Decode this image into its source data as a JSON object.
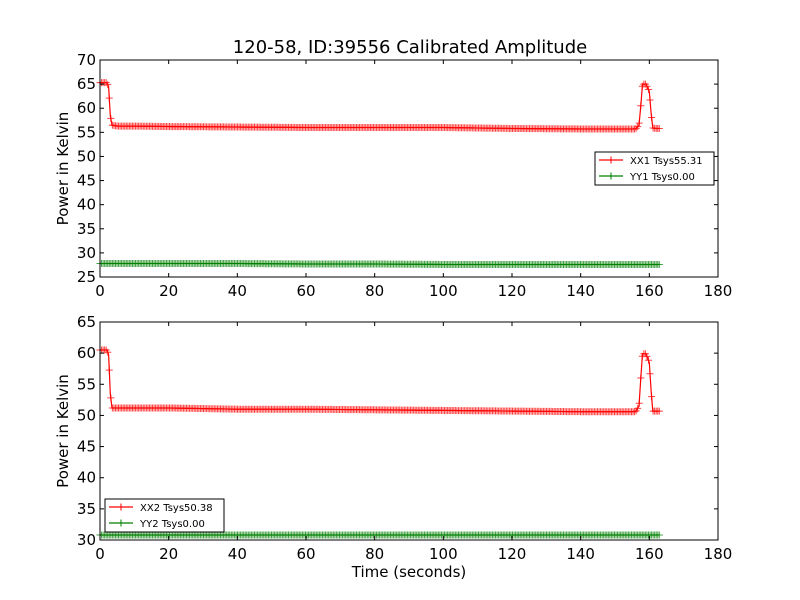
{
  "figure": {
    "title": "120-58, ID:39556 Calibrated Amplitude"
  },
  "chart_data": [
    {
      "type": "line",
      "title": "120-58, ID:39556 Calibrated Amplitude",
      "xlabel": "",
      "ylabel": "Power in Kelvin",
      "xlim": [
        0,
        180
      ],
      "ylim": [
        25,
        70
      ],
      "xticks": [
        0,
        20,
        40,
        60,
        80,
        100,
        120,
        140,
        160,
        180
      ],
      "yticks": [
        25,
        30,
        35,
        40,
        45,
        50,
        55,
        60,
        65,
        70
      ],
      "grid": false,
      "legend_position": "center-right",
      "series": [
        {
          "name": "XX1 Tsys55.31",
          "color": "#ff0000",
          "marker": "plus",
          "x": [
            0,
            2,
            2.5,
            3,
            3.5,
            5,
            10,
            20,
            40,
            60,
            80,
            100,
            120,
            140,
            156,
            157,
            157.5,
            158,
            159,
            160,
            160.5,
            161,
            162,
            163
          ],
          "y": [
            65.3,
            65.3,
            64.5,
            58.5,
            56.5,
            56.3,
            56.3,
            56.2,
            56.1,
            56.0,
            56.0,
            56.0,
            55.8,
            55.7,
            55.7,
            56.5,
            60.5,
            65.0,
            65.0,
            63.5,
            59.0,
            55.9,
            55.8,
            55.8
          ]
        },
        {
          "name": "YY1 Tsys0.00",
          "color": "#008000",
          "marker": "plus",
          "x": [
            0,
            20,
            40,
            60,
            80,
            100,
            120,
            140,
            163
          ],
          "y": [
            27.8,
            27.8,
            27.8,
            27.7,
            27.7,
            27.6,
            27.6,
            27.6,
            27.6
          ]
        }
      ]
    },
    {
      "type": "line",
      "title": "",
      "xlabel": "Time (seconds)",
      "ylabel": "Power in Kelvin",
      "xlim": [
        0,
        180
      ],
      "ylim": [
        30,
        65
      ],
      "xticks": [
        0,
        20,
        40,
        60,
        80,
        100,
        120,
        140,
        160,
        180
      ],
      "yticks": [
        30,
        35,
        40,
        45,
        50,
        55,
        60,
        65
      ],
      "grid": false,
      "legend_position": "bottom-left",
      "series": [
        {
          "name": "XX2 Tsys50.38",
          "color": "#ff0000",
          "marker": "plus",
          "x": [
            0,
            2,
            2.5,
            3,
            3.5,
            5,
            10,
            20,
            40,
            60,
            80,
            100,
            120,
            140,
            156,
            157,
            157.5,
            158,
            159,
            160,
            160.5,
            161,
            162,
            163
          ],
          "y": [
            60.5,
            60.5,
            59.8,
            53.5,
            51.2,
            51.2,
            51.2,
            51.2,
            51.0,
            51.0,
            50.9,
            50.8,
            50.7,
            50.6,
            50.6,
            51.5,
            56.0,
            59.9,
            59.9,
            58.5,
            54.0,
            50.7,
            50.7,
            50.7
          ]
        },
        {
          "name": "YY2 Tsys0.00",
          "color": "#008000",
          "marker": "plus",
          "x": [
            0,
            20,
            40,
            60,
            80,
            100,
            120,
            140,
            163
          ],
          "y": [
            30.8,
            30.8,
            30.8,
            30.8,
            30.8,
            30.8,
            30.8,
            30.8,
            30.8
          ]
        }
      ]
    }
  ]
}
